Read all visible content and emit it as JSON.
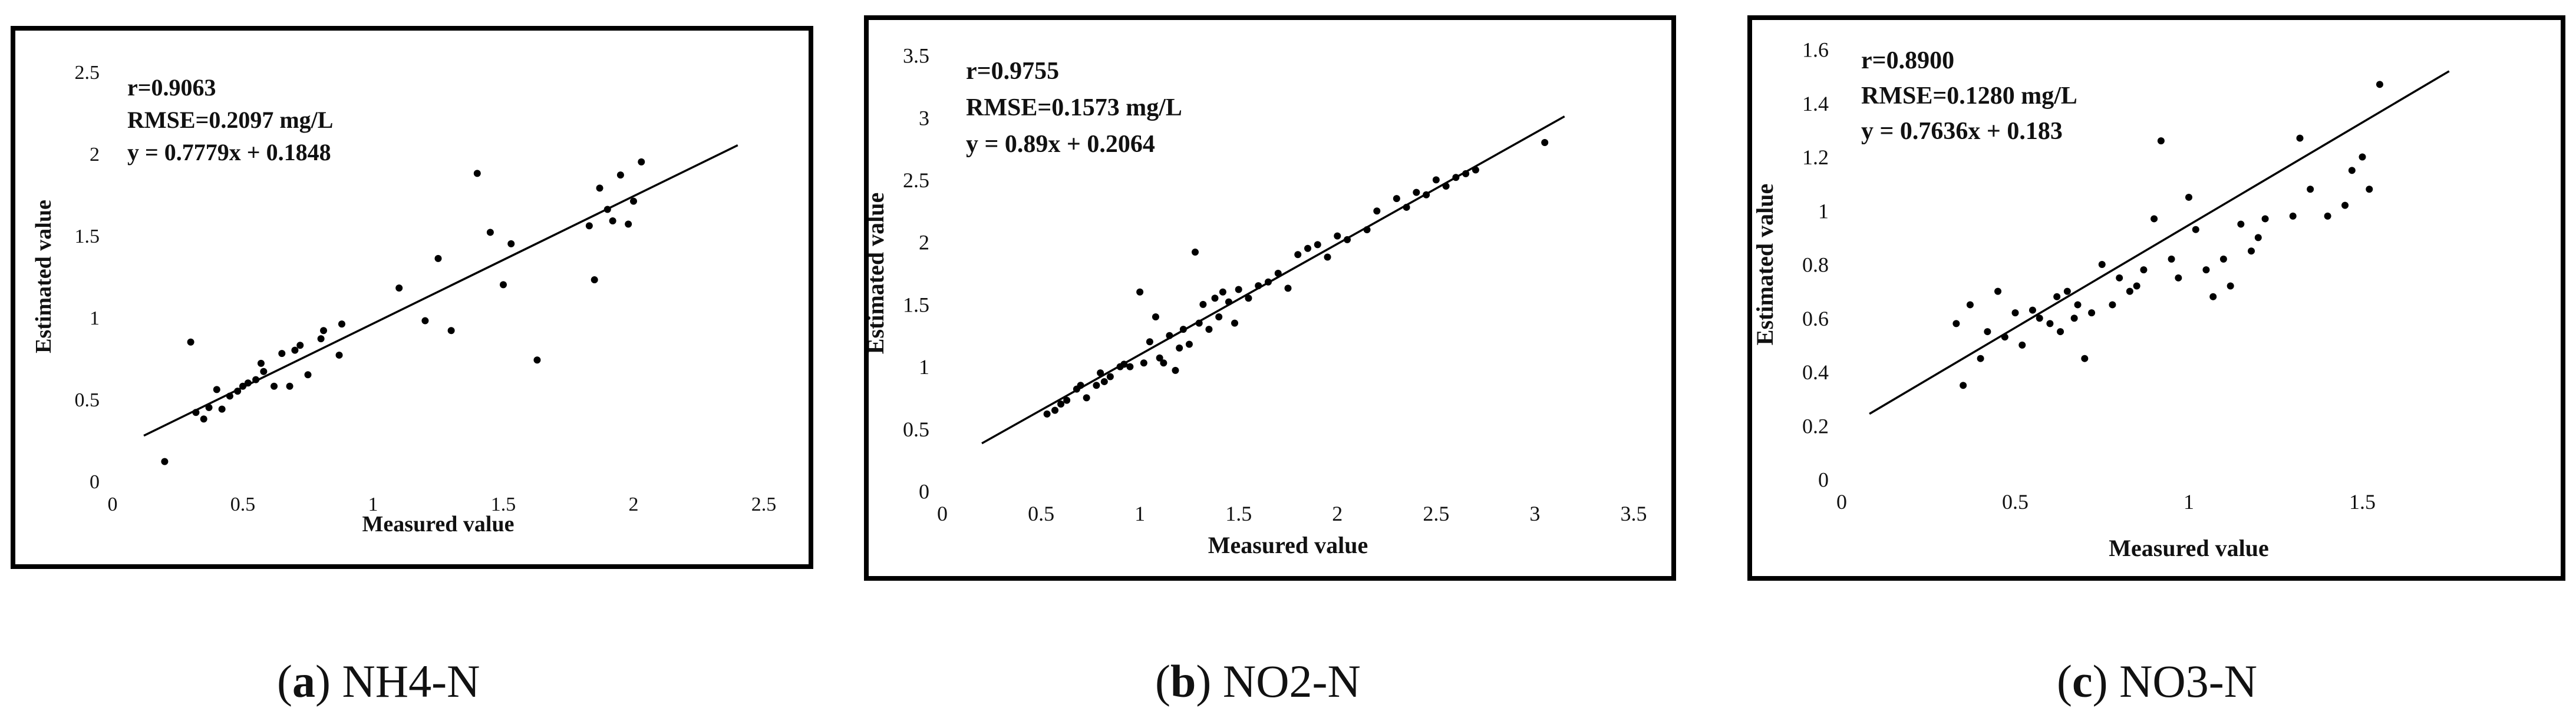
{
  "chart_data": [
    {
      "type": "scatter",
      "panel": "a",
      "caption_letter": "a",
      "caption_name": "NH4-N",
      "xlabel": "Measured value",
      "ylabel": "Estimated value",
      "xlim": [
        0,
        2.5
      ],
      "ylim": [
        0,
        2.5
      ],
      "xticks": [
        0,
        0.5,
        1,
        1.5,
        2,
        2.5
      ],
      "yticks": [
        0,
        0.5,
        1,
        1.5,
        2,
        2.5
      ],
      "xtick_labels": [
        "0",
        "0.5",
        "1",
        "1.5",
        "2",
        "2.5"
      ],
      "ytick_labels": [
        "0",
        "0.5",
        "1",
        "1.5",
        "2",
        "2.5"
      ],
      "annotations": [
        "r=0.9063",
        "RMSE=0.2097 mg/L",
        "y = 0.7779x + 0.1848"
      ],
      "fit": {
        "slope": 0.7779,
        "intercept": 0.1848,
        "x_range": [
          0.12,
          2.4
        ]
      },
      "points": [
        [
          0.2,
          0.12
        ],
        [
          0.3,
          0.85
        ],
        [
          0.32,
          0.42
        ],
        [
          0.35,
          0.38
        ],
        [
          0.37,
          0.45
        ],
        [
          0.4,
          0.56
        ],
        [
          0.42,
          0.44
        ],
        [
          0.45,
          0.52
        ],
        [
          0.48,
          0.55
        ],
        [
          0.5,
          0.58
        ],
        [
          0.52,
          0.6
        ],
        [
          0.55,
          0.62
        ],
        [
          0.57,
          0.72
        ],
        [
          0.58,
          0.67
        ],
        [
          0.62,
          0.58
        ],
        [
          0.65,
          0.78
        ],
        [
          0.68,
          0.58
        ],
        [
          0.7,
          0.8
        ],
        [
          0.72,
          0.83
        ],
        [
          0.75,
          0.65
        ],
        [
          0.8,
          0.87
        ],
        [
          0.81,
          0.92
        ],
        [
          0.87,
          0.77
        ],
        [
          0.88,
          0.96
        ],
        [
          1.1,
          1.18
        ],
        [
          1.2,
          0.98
        ],
        [
          1.25,
          1.36
        ],
        [
          1.3,
          0.92
        ],
        [
          1.4,
          1.88
        ],
        [
          1.45,
          1.52
        ],
        [
          1.5,
          1.2
        ],
        [
          1.53,
          1.45
        ],
        [
          1.63,
          0.74
        ],
        [
          1.83,
          1.56
        ],
        [
          1.85,
          1.23
        ],
        [
          1.87,
          1.79
        ],
        [
          1.9,
          1.66
        ],
        [
          1.92,
          1.59
        ],
        [
          1.95,
          1.87
        ],
        [
          1.98,
          1.57
        ],
        [
          2.0,
          1.71
        ],
        [
          2.03,
          1.95
        ]
      ]
    },
    {
      "type": "scatter",
      "panel": "b",
      "caption_letter": "b",
      "caption_name": "NO2-N",
      "xlabel": "Measured value",
      "ylabel": "Estimated value",
      "xlim": [
        0,
        3.5
      ],
      "ylim": [
        0,
        3.5
      ],
      "xticks": [
        0,
        0.5,
        1,
        1.5,
        2,
        2.5,
        3,
        3.5
      ],
      "yticks": [
        0,
        0.5,
        1,
        1.5,
        2,
        2.5,
        3,
        3.5
      ],
      "xtick_labels": [
        "0",
        "0.5",
        "1",
        "1.5",
        "2",
        "2.5",
        "3",
        "3.5"
      ],
      "ytick_labels": [
        "0",
        "0.5",
        "1",
        "1.5",
        "2",
        "2.5",
        "3",
        "3.5"
      ],
      "annotations": [
        "r=0.9755",
        "RMSE=0.1573 mg/L",
        "y = 0.89x + 0.2064"
      ],
      "fit": {
        "slope": 0.89,
        "intercept": 0.2064,
        "x_range": [
          0.2,
          3.15
        ]
      },
      "points": [
        [
          0.53,
          0.62
        ],
        [
          0.57,
          0.65
        ],
        [
          0.6,
          0.7
        ],
        [
          0.63,
          0.73
        ],
        [
          0.68,
          0.82
        ],
        [
          0.7,
          0.85
        ],
        [
          0.73,
          0.75
        ],
        [
          0.78,
          0.85
        ],
        [
          0.8,
          0.95
        ],
        [
          0.82,
          0.88
        ],
        [
          0.85,
          0.92
        ],
        [
          0.9,
          1.0
        ],
        [
          0.92,
          1.02
        ],
        [
          0.95,
          1.0
        ],
        [
          1.0,
          1.6
        ],
        [
          1.02,
          1.03
        ],
        [
          1.05,
          1.2
        ],
        [
          1.08,
          1.4
        ],
        [
          1.1,
          1.07
        ],
        [
          1.12,
          1.03
        ],
        [
          1.15,
          1.25
        ],
        [
          1.18,
          0.97
        ],
        [
          1.2,
          1.15
        ],
        [
          1.22,
          1.3
        ],
        [
          1.25,
          1.18
        ],
        [
          1.28,
          1.92
        ],
        [
          1.3,
          1.35
        ],
        [
          1.32,
          1.5
        ],
        [
          1.35,
          1.3
        ],
        [
          1.38,
          1.55
        ],
        [
          1.4,
          1.4
        ],
        [
          1.42,
          1.6
        ],
        [
          1.45,
          1.52
        ],
        [
          1.48,
          1.35
        ],
        [
          1.5,
          1.62
        ],
        [
          1.55,
          1.55
        ],
        [
          1.6,
          1.65
        ],
        [
          1.65,
          1.68
        ],
        [
          1.7,
          1.75
        ],
        [
          1.75,
          1.63
        ],
        [
          1.8,
          1.9
        ],
        [
          1.85,
          1.95
        ],
        [
          1.9,
          1.98
        ],
        [
          1.95,
          1.88
        ],
        [
          2.0,
          2.05
        ],
        [
          2.05,
          2.02
        ],
        [
          2.15,
          2.1
        ],
        [
          2.2,
          2.25
        ],
        [
          2.3,
          2.35
        ],
        [
          2.35,
          2.28
        ],
        [
          2.4,
          2.4
        ],
        [
          2.45,
          2.38
        ],
        [
          2.5,
          2.5
        ],
        [
          2.55,
          2.45
        ],
        [
          2.6,
          2.52
        ],
        [
          2.65,
          2.55
        ],
        [
          2.7,
          2.58
        ],
        [
          3.05,
          2.8
        ]
      ]
    },
    {
      "type": "scatter",
      "panel": "c",
      "caption_letter": "c",
      "caption_name": "NO3-N",
      "xlabel": "Measured value",
      "ylabel": "Estimated value",
      "xlim": [
        0,
        2
      ],
      "ylim": [
        0,
        1.6
      ],
      "xticks": [
        0,
        0.5,
        1,
        1.5
      ],
      "yticks": [
        0,
        0.2,
        0.4,
        0.6,
        0.8,
        1,
        1.2,
        1.4,
        1.6
      ],
      "xtick_labels": [
        "0",
        "0.5",
        "1",
        "1.5"
      ],
      "ytick_labels": [
        "0",
        "0.2",
        "0.4",
        "0.6",
        "0.8",
        "1",
        "1.2",
        "1.4",
        "1.6"
      ],
      "annotations": [
        "r=0.8900",
        "RMSE=0.1280 mg/L",
        "y = 0.7636x + 0.183"
      ],
      "fit": {
        "slope": 0.7636,
        "intercept": 0.183,
        "x_range": [
          0.08,
          1.75
        ]
      },
      "points": [
        [
          0.33,
          0.58
        ],
        [
          0.35,
          0.35
        ],
        [
          0.37,
          0.65
        ],
        [
          0.4,
          0.45
        ],
        [
          0.42,
          0.55
        ],
        [
          0.45,
          0.7
        ],
        [
          0.47,
          0.53
        ],
        [
          0.5,
          0.62
        ],
        [
          0.52,
          0.5
        ],
        [
          0.55,
          0.63
        ],
        [
          0.57,
          0.6
        ],
        [
          0.6,
          0.58
        ],
        [
          0.62,
          0.68
        ],
        [
          0.63,
          0.55
        ],
        [
          0.65,
          0.7
        ],
        [
          0.67,
          0.6
        ],
        [
          0.68,
          0.65
        ],
        [
          0.7,
          0.45
        ],
        [
          0.72,
          0.62
        ],
        [
          0.75,
          0.8
        ],
        [
          0.78,
          0.65
        ],
        [
          0.8,
          0.75
        ],
        [
          0.83,
          0.7
        ],
        [
          0.85,
          0.72
        ],
        [
          0.87,
          0.78
        ],
        [
          0.9,
          0.97
        ],
        [
          0.92,
          1.26
        ],
        [
          0.95,
          0.82
        ],
        [
          0.97,
          0.75
        ],
        [
          1.0,
          1.05
        ],
        [
          1.02,
          0.93
        ],
        [
          1.05,
          0.78
        ],
        [
          1.07,
          0.68
        ],
        [
          1.1,
          0.82
        ],
        [
          1.12,
          0.72
        ],
        [
          1.15,
          0.95
        ],
        [
          1.18,
          0.85
        ],
        [
          1.2,
          0.9
        ],
        [
          1.22,
          0.97
        ],
        [
          1.3,
          0.98
        ],
        [
          1.32,
          1.27
        ],
        [
          1.35,
          1.08
        ],
        [
          1.4,
          0.98
        ],
        [
          1.45,
          1.02
        ],
        [
          1.47,
          1.15
        ],
        [
          1.5,
          1.2
        ],
        [
          1.52,
          1.08
        ],
        [
          1.55,
          1.47
        ]
      ]
    }
  ]
}
